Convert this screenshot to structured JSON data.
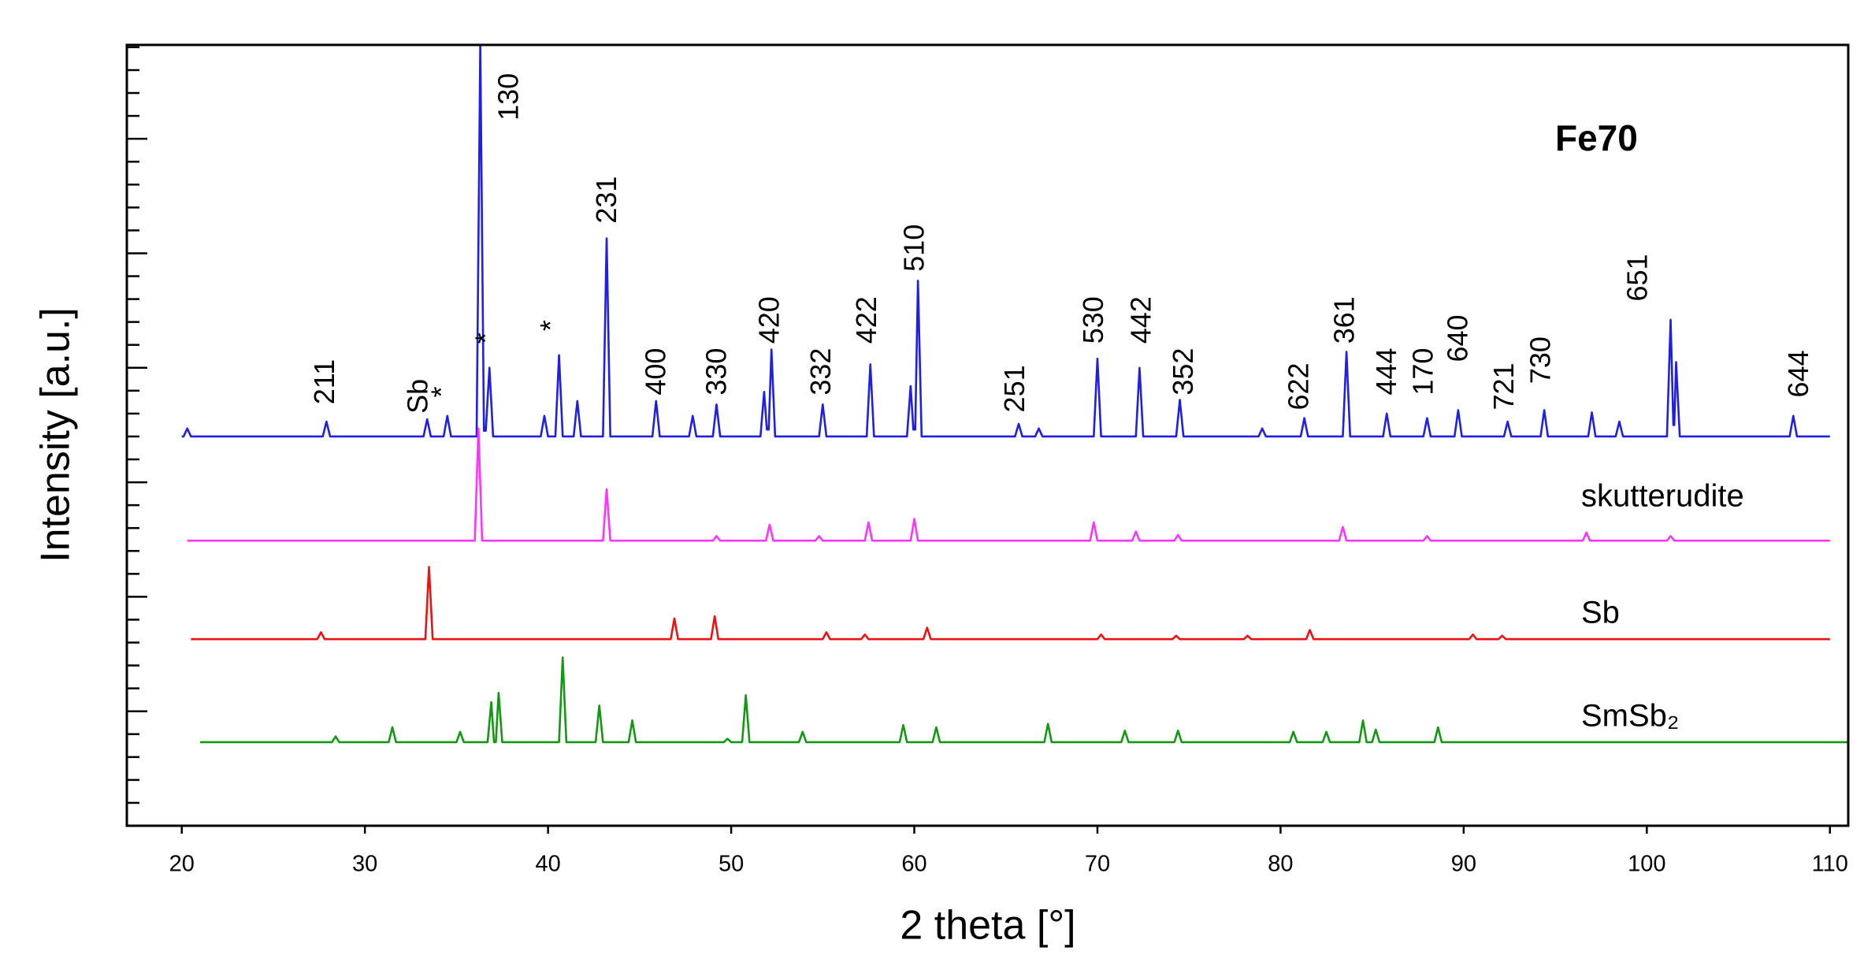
{
  "chart_data": {
    "type": "line",
    "x_label": "2 theta [°]",
    "y_label": "Intensity [a.u.]",
    "xlim": [
      17,
      111
    ],
    "xticks": [
      20,
      30,
      40,
      50,
      60,
      70,
      80,
      90,
      100,
      110
    ],
    "ylim": [
      0,
      68.2
    ],
    "yticks": [
      0,
      2,
      4,
      6,
      8,
      10,
      12,
      14,
      16,
      18,
      20,
      22,
      24,
      26,
      28,
      30,
      32,
      34,
      36,
      38,
      40,
      42,
      44,
      46,
      48,
      50,
      52,
      54,
      56,
      58,
      60,
      62,
      64,
      66,
      68
    ],
    "series": [
      {
        "name": "Fe70",
        "color": "#1f1fe6",
        "x": [
          20.0,
          20.1,
          20.3,
          20.5,
          27.7,
          27.9,
          28.1,
          33.2,
          33.4,
          33.6,
          34.3,
          34.5,
          34.7,
          36.1,
          36.3,
          36.5,
          36.6,
          36.8,
          37.0,
          39.6,
          39.8,
          40.0,
          40.4,
          40.6,
          40.8,
          41.4,
          41.6,
          41.8,
          43.0,
          43.2,
          43.4,
          45.7,
          45.9,
          46.1,
          47.7,
          47.9,
          48.1,
          49.0,
          49.2,
          49.4,
          51.6,
          51.8,
          51.95,
          52.05,
          52.2,
          52.4,
          54.8,
          55.0,
          55.2,
          57.4,
          57.6,
          57.8,
          59.6,
          59.8,
          59.95,
          60.05,
          60.2,
          60.4,
          65.5,
          65.7,
          65.9,
          66.6,
          66.8,
          67.0,
          69.8,
          70.0,
          70.2,
          72.1,
          72.3,
          72.5,
          74.3,
          74.5,
          74.7,
          78.8,
          79.0,
          79.2,
          81.1,
          81.3,
          81.5,
          83.4,
          83.6,
          83.8,
          85.6,
          85.8,
          86.0,
          87.8,
          88.0,
          88.2,
          89.5,
          89.7,
          89.9,
          92.2,
          92.4,
          92.6,
          94.2,
          94.4,
          94.6,
          96.8,
          97.0,
          97.2,
          98.3,
          98.5,
          98.7,
          101.1,
          101.3,
          101.45,
          101.5,
          101.6,
          101.8,
          107.8,
          108.0,
          108.2,
          110.0
        ],
        "values": [
          34.0,
          34.0,
          34.7,
          34.0,
          34.0,
          35.3,
          34.0,
          34.0,
          35.5,
          34.0,
          34.0,
          35.8,
          34.0,
          34.0,
          68.2,
          34.5,
          34.5,
          40.0,
          34.0,
          34.0,
          35.8,
          34.0,
          34.0,
          41.1,
          34.0,
          34.0,
          37.1,
          34.0,
          34.0,
          51.3,
          34.0,
          34.0,
          37.1,
          34.0,
          34.0,
          35.8,
          34.0,
          34.0,
          36.8,
          34.0,
          34.0,
          37.9,
          34.6,
          34.6,
          41.6,
          34.0,
          34.0,
          36.8,
          34.0,
          34.0,
          40.3,
          34.0,
          34.0,
          38.4,
          34.6,
          34.6,
          47.6,
          34.0,
          34.0,
          35.1,
          34.0,
          34.0,
          34.7,
          34.0,
          34.0,
          40.8,
          34.0,
          34.0,
          40.0,
          34.0,
          34.0,
          37.2,
          34.0,
          34.0,
          34.7,
          34.0,
          34.0,
          35.6,
          34.0,
          34.0,
          41.4,
          34.0,
          34.0,
          36.0,
          34.0,
          34.0,
          35.6,
          34.0,
          34.0,
          36.3,
          34.0,
          34.0,
          35.3,
          34.0,
          34.0,
          36.3,
          34.0,
          34.0,
          36.1,
          34.0,
          34.0,
          35.3,
          34.0,
          34.0,
          44.2,
          35.0,
          35.0,
          40.5,
          34.0,
          34.0,
          35.8,
          34.0,
          34.0
        ]
      },
      {
        "name": "skutterudite",
        "color": "#ff33ff",
        "x": [
          20.3,
          36.0,
          36.2,
          36.4,
          43.0,
          43.2,
          43.4,
          49.0,
          49.2,
          49.4,
          51.9,
          52.1,
          52.3,
          54.6,
          54.8,
          55.0,
          57.3,
          57.5,
          57.7,
          59.8,
          60.0,
          60.2,
          69.6,
          69.8,
          70.0,
          71.9,
          72.1,
          72.3,
          74.2,
          74.4,
          74.6,
          83.2,
          83.4,
          83.6,
          87.8,
          88.0,
          88.2,
          96.5,
          96.7,
          96.9,
          101.1,
          101.3,
          101.5,
          110.0
        ],
        "values": [
          24.9,
          24.9,
          34.7,
          24.9,
          24.9,
          29.4,
          24.9,
          24.9,
          25.3,
          24.9,
          24.9,
          26.3,
          24.9,
          24.9,
          25.3,
          24.9,
          24.9,
          26.5,
          24.9,
          24.9,
          26.8,
          24.9,
          24.9,
          26.5,
          24.9,
          24.9,
          25.7,
          24.9,
          24.9,
          25.4,
          24.9,
          24.9,
          26.1,
          24.9,
          24.9,
          25.3,
          24.9,
          24.9,
          25.6,
          24.9,
          24.9,
          25.3,
          24.9,
          24.9
        ]
      },
      {
        "name": "Sb",
        "color": "#ee1111",
        "x": [
          20.5,
          27.4,
          27.6,
          27.8,
          33.3,
          33.5,
          33.7,
          46.7,
          46.9,
          47.1,
          48.9,
          49.1,
          49.3,
          55.0,
          55.2,
          55.4,
          57.1,
          57.3,
          57.5,
          60.5,
          60.7,
          60.9,
          70.0,
          70.2,
          70.4,
          74.1,
          74.3,
          74.5,
          78.0,
          78.2,
          78.4,
          81.4,
          81.6,
          81.8,
          90.3,
          90.5,
          90.7,
          91.9,
          92.1,
          92.3,
          110.0
        ],
        "values": [
          16.3,
          16.3,
          16.9,
          16.3,
          16.3,
          22.6,
          16.3,
          16.3,
          18.1,
          16.3,
          16.3,
          18.3,
          16.3,
          16.3,
          16.9,
          16.3,
          16.3,
          16.7,
          16.3,
          16.3,
          17.3,
          16.3,
          16.3,
          16.7,
          16.3,
          16.3,
          16.6,
          16.3,
          16.3,
          16.6,
          16.3,
          16.3,
          17.1,
          16.3,
          16.3,
          16.7,
          16.3,
          16.3,
          16.6,
          16.3,
          16.3
        ]
      },
      {
        "name": "SmSb₂",
        "color": "#119911",
        "x": [
          21.0,
          28.2,
          28.4,
          28.6,
          31.3,
          31.5,
          31.7,
          35.0,
          35.2,
          35.4,
          36.7,
          36.9,
          37.05,
          37.15,
          37.3,
          37.5,
          40.6,
          40.8,
          41.0,
          42.6,
          42.8,
          43.0,
          44.4,
          44.6,
          44.8,
          49.6,
          49.8,
          50.0,
          50.6,
          50.8,
          51.0,
          53.7,
          53.9,
          54.1,
          59.2,
          59.4,
          59.6,
          61.0,
          61.2,
          61.4,
          67.1,
          67.3,
          67.5,
          71.3,
          71.5,
          71.7,
          74.2,
          74.4,
          74.6,
          80.5,
          80.7,
          80.9,
          82.3,
          82.5,
          82.7,
          84.3,
          84.5,
          84.7,
          85.0,
          85.2,
          85.4,
          88.4,
          88.6,
          88.8,
          111.0
        ],
        "values": [
          7.3,
          7.3,
          7.8,
          7.3,
          7.3,
          8.6,
          7.3,
          7.3,
          8.2,
          7.3,
          7.3,
          10.8,
          7.3,
          7.3,
          11.6,
          7.3,
          7.3,
          14.7,
          7.3,
          7.3,
          10.5,
          7.3,
          7.3,
          9.2,
          7.3,
          7.3,
          7.6,
          7.3,
          7.3,
          11.4,
          7.3,
          7.3,
          8.2,
          7.3,
          7.3,
          8.8,
          7.3,
          7.3,
          8.6,
          7.3,
          7.3,
          8.9,
          7.3,
          7.3,
          8.3,
          7.3,
          7.3,
          8.3,
          7.3,
          7.3,
          8.2,
          7.3,
          7.3,
          8.2,
          7.3,
          7.3,
          9.2,
          7.3,
          7.3,
          8.4,
          7.3,
          7.3,
          8.6,
          7.3,
          7.3
        ]
      }
    ],
    "annotations": [
      {
        "text": "211",
        "x": 27.9,
        "y": 36.8
      },
      {
        "text": "Sb",
        "x": 33.0,
        "y": 36.0
      },
      {
        "text": "*",
        "x": 34.3,
        "y": 37.4
      },
      {
        "text": "130",
        "x": 37.95,
        "y": 61.6
      },
      {
        "text": "*",
        "x": 36.7,
        "y": 42.1
      },
      {
        "text": "*",
        "x": 40.25,
        "y": 43.2
      },
      {
        "text": "231",
        "x": 43.3,
        "y": 52.6
      },
      {
        "text": "400",
        "x": 46.0,
        "y": 37.6
      },
      {
        "text": "330",
        "x": 49.3,
        "y": 37.6
      },
      {
        "text": "420",
        "x": 52.2,
        "y": 42.1
      },
      {
        "text": "332",
        "x": 55.0,
        "y": 37.6
      },
      {
        "text": "422",
        "x": 57.5,
        "y": 42.1
      },
      {
        "text": "510",
        "x": 60.1,
        "y": 48.4
      },
      {
        "text": "251",
        "x": 65.6,
        "y": 36.1
      },
      {
        "text": "530",
        "x": 69.9,
        "y": 42.1
      },
      {
        "text": "442",
        "x": 72.5,
        "y": 42.1
      },
      {
        "text": "352",
        "x": 74.8,
        "y": 37.6
      },
      {
        "text": "622",
        "x": 81.1,
        "y": 36.3
      },
      {
        "text": "361",
        "x": 83.6,
        "y": 42.1
      },
      {
        "text": "444",
        "x": 85.9,
        "y": 37.6
      },
      {
        "text": "170",
        "x": 87.9,
        "y": 37.6
      },
      {
        "text": "640",
        "x": 89.8,
        "y": 40.5
      },
      {
        "text": "721",
        "x": 92.3,
        "y": 36.3
      },
      {
        "text": "730",
        "x": 94.3,
        "y": 38.6
      },
      {
        "text": "651",
        "x": 99.6,
        "y": 45.8
      },
      {
        "text": "644",
        "x": 108.4,
        "y": 37.4
      }
    ]
  }
}
